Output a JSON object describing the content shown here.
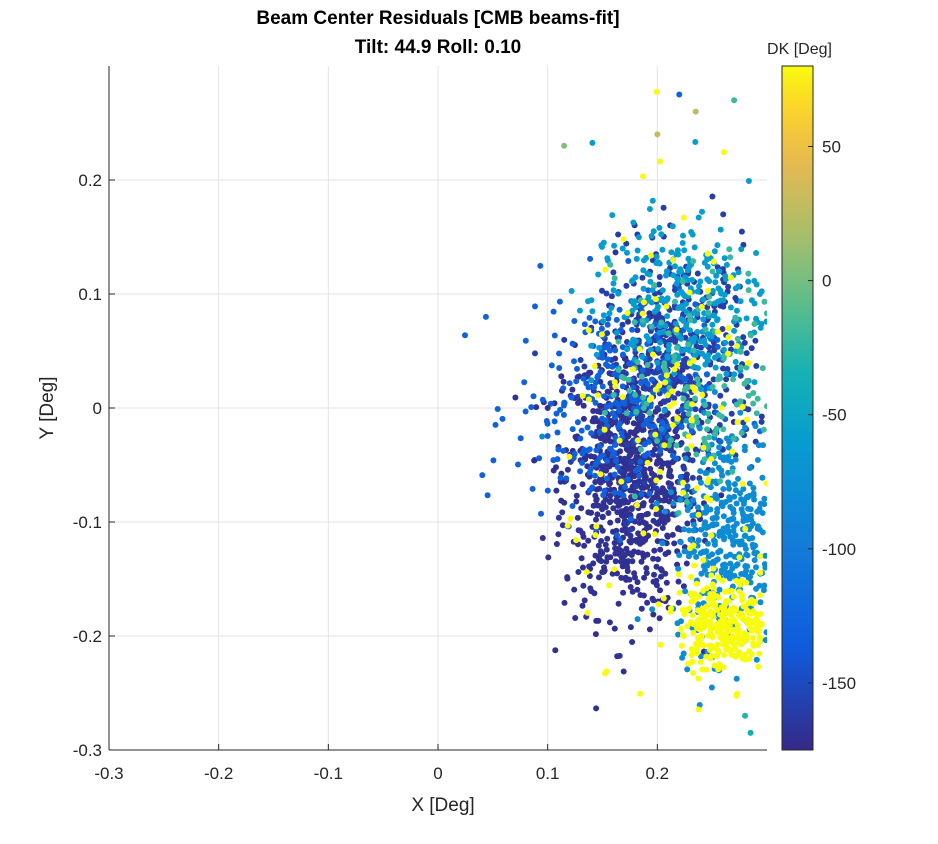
{
  "chart_data": {
    "type": "scatter",
    "title": "Beam Center Residuals [CMB beams-fit]",
    "subtitle": "Tilt: 44.9  Roll: 0.10",
    "xlabel": "X [Deg]",
    "ylabel": "Y [Deg]",
    "xlim": [
      -0.3,
      0.3
    ],
    "ylim": [
      -0.3,
      0.3
    ],
    "xticks": [
      -0.3,
      -0.2,
      -0.1,
      0,
      0.1,
      0.2
    ],
    "xtick_labels": [
      "-0.3",
      "-0.2",
      "-0.1",
      "0",
      "0.1",
      "0.2"
    ],
    "yticks": [
      -0.3,
      -0.2,
      -0.1,
      0,
      0.1,
      0.2
    ],
    "ytick_labels": [
      "-0.3",
      "-0.2",
      "-0.1",
      "0",
      "0.1",
      "0.2"
    ],
    "grid": true,
    "colorbar": {
      "label": "DK [Deg]",
      "range": [
        -175,
        80
      ],
      "ticks": [
        50,
        0,
        -50,
        -100,
        -150
      ],
      "tick_labels": [
        "50",
        "0",
        "-50",
        "-100",
        "-150"
      ],
      "colormap": "parula"
    },
    "clusters": [
      {
        "dk": -170,
        "center": [
          0.175,
          -0.06
        ],
        "spread": [
          0.03,
          0.06
        ],
        "n": 900
      },
      {
        "dk": -160,
        "center": [
          0.22,
          0.04
        ],
        "spread": [
          0.035,
          0.05
        ],
        "n": 400
      },
      {
        "dk": -130,
        "center": [
          0.16,
          0.0
        ],
        "spread": [
          0.045,
          0.05
        ],
        "n": 300
      },
      {
        "dk": -80,
        "center": [
          0.265,
          -0.11
        ],
        "spread": [
          0.025,
          0.05
        ],
        "n": 400
      },
      {
        "dk": -60,
        "center": [
          0.22,
          0.09
        ],
        "spread": [
          0.04,
          0.04
        ],
        "n": 300
      },
      {
        "dk": -20,
        "center": [
          0.24,
          0.02
        ],
        "spread": [
          0.04,
          0.05
        ],
        "n": 150
      },
      {
        "dk": 80,
        "center": [
          0.26,
          -0.19
        ],
        "spread": [
          0.02,
          0.02
        ],
        "n": 300
      },
      {
        "dk": 80,
        "center": [
          0.22,
          -0.02
        ],
        "spread": [
          0.05,
          0.09
        ],
        "n": 120
      }
    ],
    "outliers": [
      {
        "x": 0.115,
        "y": 0.23,
        "dk": 5
      },
      {
        "x": 0.22,
        "y": 0.275,
        "dk": -130
      },
      {
        "x": 0.27,
        "y": 0.27,
        "dk": -20
      },
      {
        "x": 0.235,
        "y": 0.26,
        "dk": 25
      },
      {
        "x": 0.2,
        "y": 0.24,
        "dk": 30
      },
      {
        "x": 0.285,
        "y": -0.285,
        "dk": -40
      },
      {
        "x": 0.28,
        "y": -0.27,
        "dk": -30
      },
      {
        "x": 0.095,
        "y": -0.025,
        "dk": -80
      },
      {
        "x": 0.1,
        "y": 0.0,
        "dk": -170
      }
    ]
  }
}
